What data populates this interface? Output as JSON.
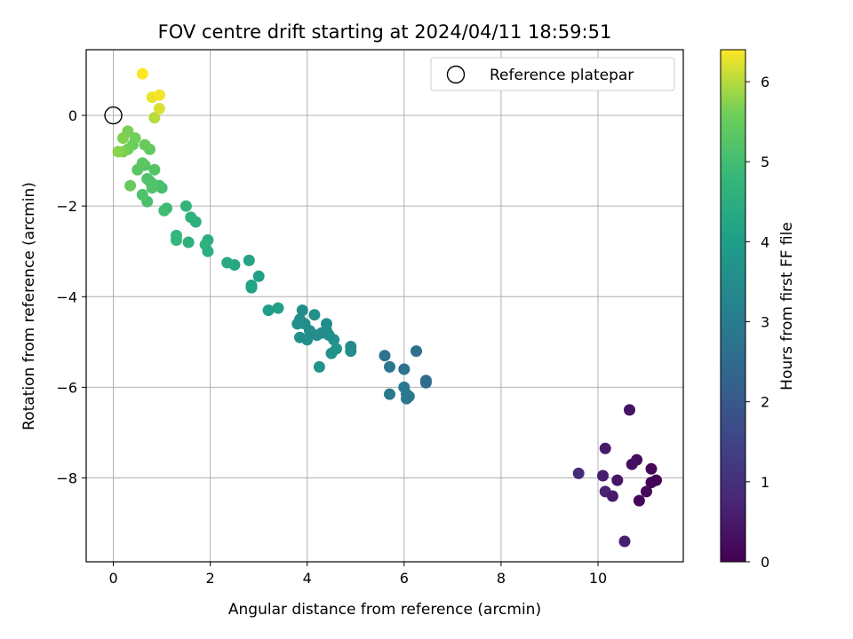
{
  "chart_data": {
    "type": "scatter",
    "title": "FOV centre drift starting at 2024/04/11 18:59:51",
    "xlabel": "Angular distance from reference (arcmin)",
    "ylabel": "Rotation from reference (arcmin)",
    "xlim": [
      -0.56,
      11.76
    ],
    "ylim": [
      -9.85,
      1.45
    ],
    "xticks": [
      0,
      2,
      4,
      6,
      8,
      10
    ],
    "yticks": [
      0,
      -2,
      -4,
      -6,
      -8
    ],
    "grid": true,
    "colormap": "viridis",
    "colorbar": {
      "label": "Hours from first FF file",
      "range": [
        0,
        6.4
      ],
      "ticks": [
        0,
        1,
        2,
        3,
        4,
        5,
        6
      ]
    },
    "legend": {
      "placement": "top-right",
      "entries": [
        {
          "label": "Reference platepar",
          "marker": "open-circle",
          "x": 0,
          "y": 0
        }
      ]
    },
    "series": [
      {
        "points": [
          [
            10.65,
            -6.5,
            0.35
          ],
          [
            10.15,
            -7.35,
            0.5
          ],
          [
            10.8,
            -7.6,
            0.2
          ],
          [
            10.7,
            -7.7,
            0.3
          ],
          [
            11.1,
            -7.8,
            0.1
          ],
          [
            11.2,
            -8.05,
            0.05
          ],
          [
            11.1,
            -8.1,
            0.08
          ],
          [
            10.4,
            -8.05,
            0.4
          ],
          [
            10.1,
            -7.95,
            0.6
          ],
          [
            9.6,
            -7.9,
            0.9
          ],
          [
            11.0,
            -8.3,
            0.15
          ],
          [
            10.15,
            -8.3,
            0.7
          ],
          [
            10.3,
            -8.4,
            0.5
          ],
          [
            10.85,
            -8.5,
            0.12
          ],
          [
            10.55,
            -9.4,
            0.65
          ],
          [
            5.6,
            -5.3,
            2.7
          ],
          [
            5.7,
            -5.55,
            2.8
          ],
          [
            6.0,
            -5.6,
            2.7
          ],
          [
            6.25,
            -5.2,
            2.6
          ],
          [
            6.45,
            -5.85,
            2.5
          ],
          [
            6.45,
            -5.9,
            2.55
          ],
          [
            6.0,
            -6.0,
            2.9
          ],
          [
            6.05,
            -6.15,
            2.95
          ],
          [
            6.1,
            -6.2,
            3.0
          ],
          [
            6.05,
            -6.25,
            2.85
          ],
          [
            5.7,
            -6.15,
            2.9
          ],
          [
            3.9,
            -4.3,
            3.5
          ],
          [
            3.85,
            -4.5,
            3.55
          ],
          [
            3.95,
            -4.6,
            3.5
          ],
          [
            4.15,
            -4.4,
            3.6
          ],
          [
            4.4,
            -4.6,
            3.45
          ],
          [
            4.3,
            -4.8,
            3.4
          ],
          [
            4.05,
            -4.75,
            3.5
          ],
          [
            3.85,
            -4.9,
            3.6
          ],
          [
            4.0,
            -4.95,
            3.55
          ],
          [
            4.2,
            -4.85,
            3.5
          ],
          [
            4.55,
            -4.95,
            3.65
          ],
          [
            4.45,
            -4.85,
            3.6
          ],
          [
            4.4,
            -4.75,
            3.55
          ],
          [
            4.6,
            -5.15,
            3.7
          ],
          [
            4.5,
            -5.25,
            3.65
          ],
          [
            4.9,
            -5.1,
            3.45
          ],
          [
            4.9,
            -5.2,
            3.5
          ],
          [
            4.25,
            -5.55,
            3.75
          ],
          [
            3.8,
            -4.6,
            3.6
          ],
          [
            3.4,
            -4.25,
            4.1
          ],
          [
            3.2,
            -4.3,
            4.0
          ],
          [
            3.0,
            -3.55,
            4.05
          ],
          [
            2.8,
            -3.2,
            4.2
          ],
          [
            2.85,
            -3.8,
            4.1
          ],
          [
            2.85,
            -3.75,
            4.15
          ],
          [
            2.5,
            -3.3,
            4.3
          ],
          [
            2.35,
            -3.25,
            4.35
          ],
          [
            1.95,
            -2.75,
            4.55
          ],
          [
            1.9,
            -2.85,
            4.6
          ],
          [
            1.95,
            -3.0,
            4.5
          ],
          [
            1.7,
            -2.35,
            4.6
          ],
          [
            1.6,
            -2.25,
            4.65
          ],
          [
            1.5,
            -2.0,
            4.7
          ],
          [
            1.55,
            -2.8,
            4.55
          ],
          [
            1.3,
            -2.65,
            4.8
          ],
          [
            1.3,
            -2.75,
            4.75
          ],
          [
            1.1,
            -2.05,
            4.9
          ],
          [
            1.05,
            -2.1,
            4.95
          ],
          [
            1.0,
            -1.6,
            5.0
          ],
          [
            0.95,
            -1.55,
            5.1
          ],
          [
            0.8,
            -1.6,
            5.2
          ],
          [
            0.75,
            -1.45,
            5.1
          ],
          [
            0.7,
            -1.4,
            5.15
          ],
          [
            0.65,
            -1.1,
            5.2
          ],
          [
            0.85,
            -1.2,
            5.25
          ],
          [
            0.8,
            -1.5,
            5.2
          ],
          [
            0.7,
            -1.9,
            5.1
          ],
          [
            0.6,
            -1.75,
            5.15
          ],
          [
            0.5,
            -1.2,
            5.3
          ],
          [
            0.6,
            -1.05,
            5.35
          ],
          [
            0.35,
            -1.55,
            5.5
          ],
          [
            0.75,
            -0.75,
            5.4
          ],
          [
            0.65,
            -0.65,
            5.5
          ],
          [
            0.4,
            -0.65,
            5.55
          ],
          [
            0.45,
            -0.5,
            5.6
          ],
          [
            0.3,
            -0.35,
            5.65
          ],
          [
            0.2,
            -0.5,
            5.7
          ],
          [
            0.3,
            -0.75,
            5.6
          ],
          [
            0.2,
            -0.8,
            5.65
          ],
          [
            0.1,
            -0.8,
            5.75
          ],
          [
            0.85,
            -0.05,
            6.0
          ],
          [
            0.95,
            0.15,
            6.2
          ],
          [
            0.8,
            0.4,
            6.3
          ],
          [
            0.95,
            0.45,
            6.35
          ],
          [
            0.6,
            0.92,
            6.4
          ]
        ]
      }
    ]
  }
}
